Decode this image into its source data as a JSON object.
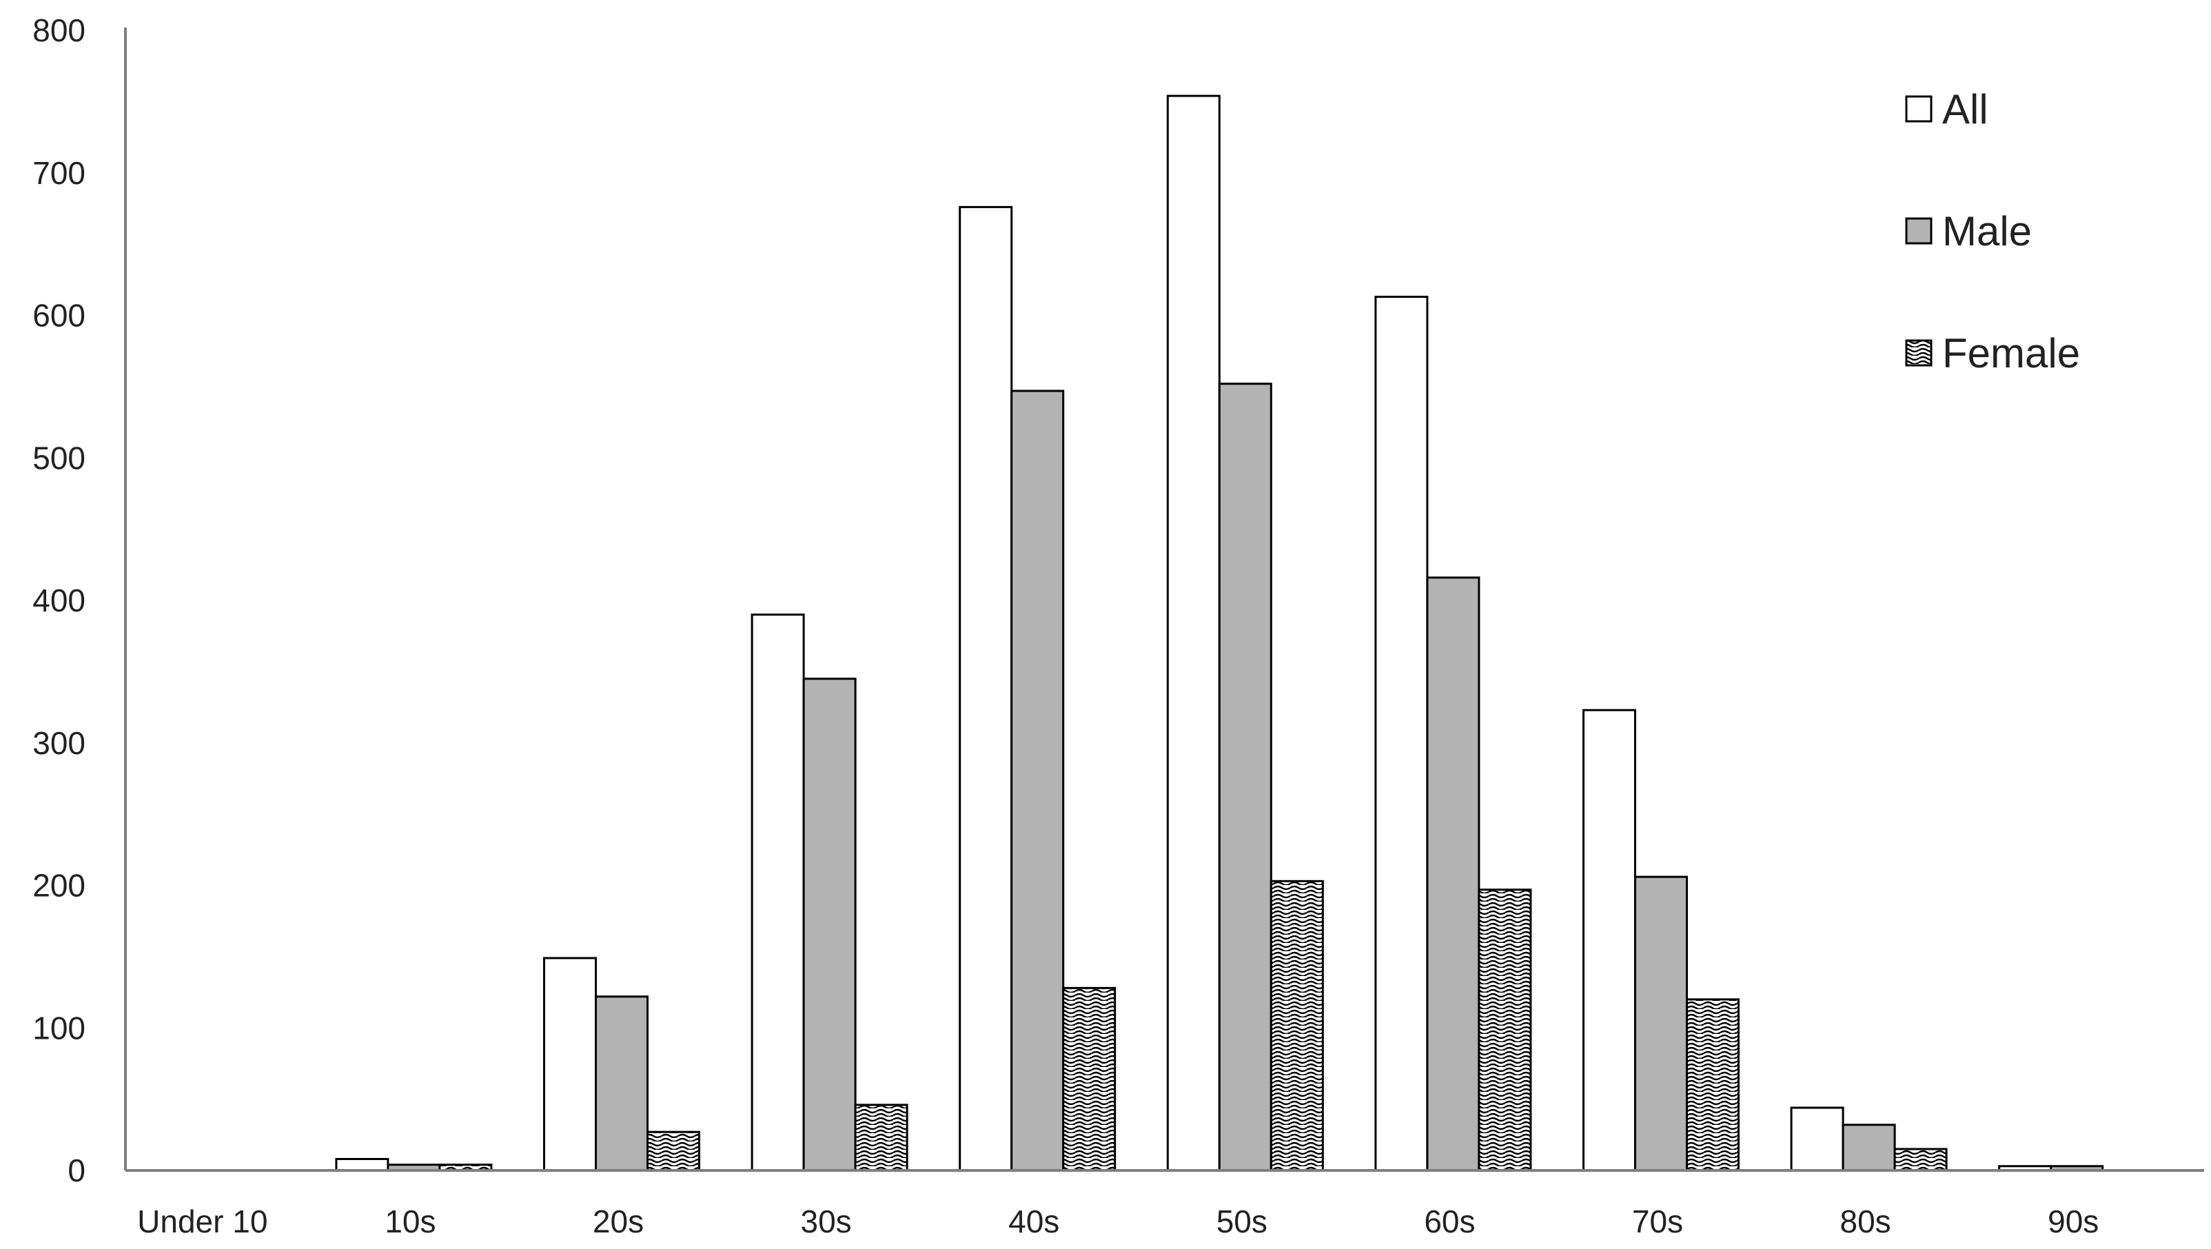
{
  "chart_data": {
    "type": "bar",
    "title": "",
    "xlabel": "",
    "ylabel": "",
    "categories": [
      "Under 10",
      "10s",
      "20s",
      "30s",
      "40s",
      "50s",
      "60s",
      "70s",
      "80s",
      "90s"
    ],
    "series": [
      {
        "name": "All",
        "values": [
          0,
          8,
          149,
          390,
          676,
          754,
          613,
          323,
          44,
          3
        ],
        "fill": "#ffffff",
        "pattern": "none"
      },
      {
        "name": "Male",
        "values": [
          0,
          4,
          122,
          345,
          547,
          552,
          416,
          206,
          32,
          3
        ],
        "fill": "#b3b3b3",
        "pattern": "none"
      },
      {
        "name": "Female",
        "values": [
          0,
          4,
          27,
          46,
          128,
          203,
          197,
          120,
          15,
          0
        ],
        "fill": "#ffffff",
        "pattern": "wavy-hatch"
      }
    ],
    "ylim": [
      0,
      800
    ],
    "yticks": [
      0,
      100,
      200,
      300,
      400,
      500,
      600,
      700,
      800
    ],
    "grid": false,
    "legend_position": "top-right",
    "colors": {
      "axis": "#7f7f7f",
      "bar_outline": "#000000",
      "text": "#222222"
    }
  }
}
